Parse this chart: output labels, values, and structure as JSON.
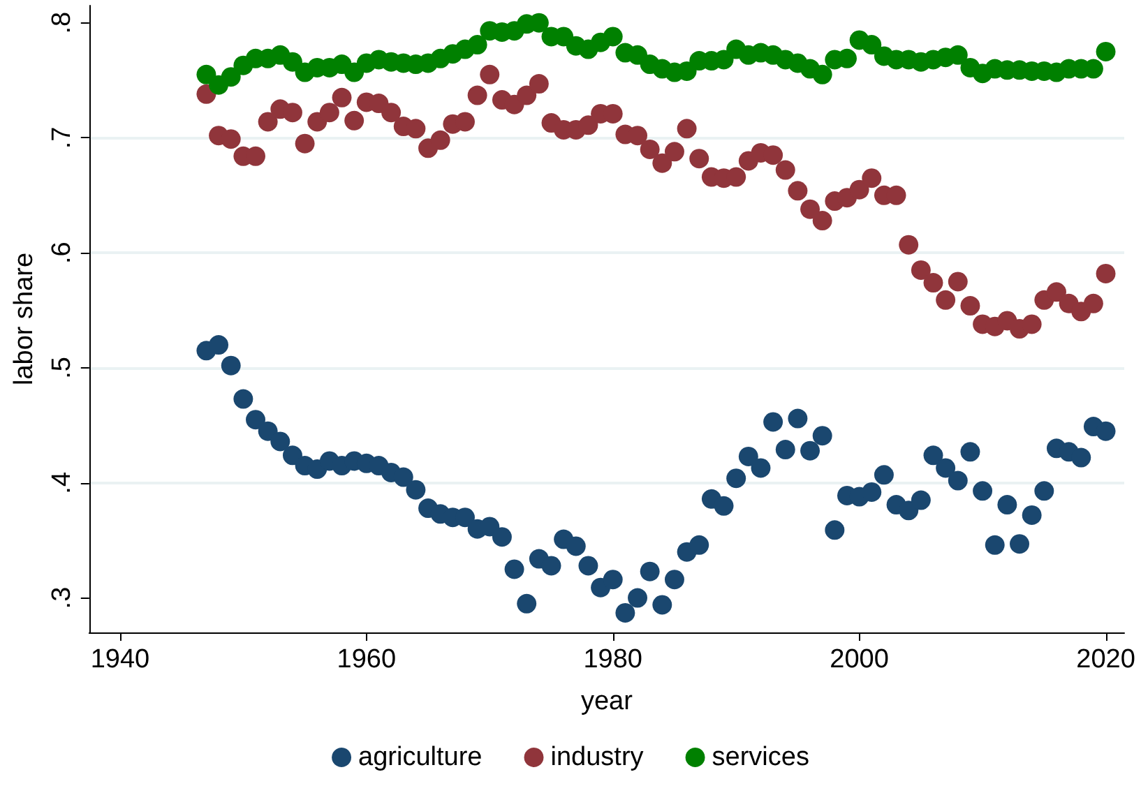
{
  "chart_data": {
    "type": "scatter",
    "xlabel": "year",
    "ylabel": "labor share",
    "x": [
      1947,
      1948,
      1949,
      1950,
      1951,
      1952,
      1953,
      1954,
      1955,
      1956,
      1957,
      1958,
      1959,
      1960,
      1961,
      1962,
      1963,
      1964,
      1965,
      1966,
      1967,
      1968,
      1969,
      1970,
      1971,
      1972,
      1973,
      1974,
      1975,
      1976,
      1977,
      1978,
      1979,
      1980,
      1981,
      1982,
      1983,
      1984,
      1985,
      1986,
      1987,
      1988,
      1989,
      1990,
      1991,
      1992,
      1993,
      1994,
      1995,
      1996,
      1997,
      1998,
      1999,
      2000,
      2001,
      2002,
      2003,
      2004,
      2005,
      2006,
      2007,
      2008,
      2009,
      2010,
      2011,
      2012,
      2013,
      2014,
      2015,
      2016,
      2017,
      2018,
      2019,
      2020
    ],
    "series": [
      {
        "name": "agriculture",
        "color": "#1a476f",
        "values": [
          0.515,
          0.52,
          0.502,
          0.473,
          0.455,
          0.445,
          0.436,
          0.424,
          0.415,
          0.412,
          0.419,
          0.415,
          0.419,
          0.417,
          0.415,
          0.409,
          0.405,
          0.394,
          0.378,
          0.373,
          0.37,
          0.37,
          0.36,
          0.362,
          0.353,
          0.325,
          0.295,
          0.334,
          0.328,
          0.351,
          0.345,
          0.328,
          0.309,
          0.316,
          0.287,
          0.3,
          0.323,
          0.294,
          0.316,
          0.34,
          0.346,
          0.386,
          0.38,
          0.404,
          0.423,
          0.413,
          0.453,
          0.429,
          0.456,
          0.428,
          0.441,
          0.359,
          0.389,
          0.388,
          0.392,
          0.407,
          0.381,
          0.376,
          0.385,
          0.424,
          0.413,
          0.402,
          0.427,
          0.393,
          0.346,
          0.381,
          0.347,
          0.372,
          0.393,
          0.43,
          0.427,
          0.422,
          0.449,
          0.445
        ]
      },
      {
        "name": "industry",
        "color": "#90353b",
        "values": [
          0.738,
          0.702,
          0.699,
          0.684,
          0.684,
          0.714,
          0.725,
          0.722,
          0.695,
          0.714,
          0.722,
          0.735,
          0.715,
          0.731,
          0.73,
          0.722,
          0.71,
          0.708,
          0.691,
          0.698,
          0.712,
          0.714,
          0.737,
          0.755,
          0.733,
          0.729,
          0.737,
          0.747,
          0.713,
          0.707,
          0.707,
          0.711,
          0.721,
          0.721,
          0.703,
          0.702,
          0.69,
          0.678,
          0.688,
          0.708,
          0.682,
          0.666,
          0.665,
          0.666,
          0.68,
          0.687,
          0.685,
          0.672,
          0.654,
          0.638,
          0.628,
          0.645,
          0.648,
          0.655,
          0.665,
          0.65,
          0.65,
          0.607,
          0.585,
          0.574,
          0.559,
          0.575,
          0.554,
          0.538,
          0.536,
          0.541,
          0.534,
          0.538,
          0.559,
          0.566,
          0.556,
          0.549,
          0.556,
          0.582
        ]
      },
      {
        "name": "services",
        "color": "#008000",
        "values": [
          0.755,
          0.746,
          0.753,
          0.763,
          0.769,
          0.769,
          0.772,
          0.766,
          0.757,
          0.761,
          0.761,
          0.764,
          0.757,
          0.765,
          0.768,
          0.766,
          0.765,
          0.764,
          0.765,
          0.769,
          0.773,
          0.777,
          0.781,
          0.793,
          0.792,
          0.793,
          0.799,
          0.8,
          0.788,
          0.788,
          0.78,
          0.777,
          0.783,
          0.788,
          0.774,
          0.772,
          0.764,
          0.76,
          0.757,
          0.758,
          0.767,
          0.767,
          0.768,
          0.777,
          0.772,
          0.774,
          0.772,
          0.768,
          0.765,
          0.76,
          0.755,
          0.768,
          0.769,
          0.785,
          0.781,
          0.771,
          0.768,
          0.768,
          0.766,
          0.768,
          0.77,
          0.772,
          0.761,
          0.756,
          0.76,
          0.759,
          0.759,
          0.758,
          0.758,
          0.757,
          0.76,
          0.76,
          0.76,
          0.775
        ]
      }
    ],
    "xlim": [
      1937.5,
      2021.5
    ],
    "xticks": [
      1940,
      1960,
      1980,
      2000,
      2020
    ],
    "ylim": [
      0.27,
      0.815
    ],
    "yticks": [
      {
        "value": 0.3,
        "label": ".3"
      },
      {
        "value": 0.4,
        "label": ".4"
      },
      {
        "value": 0.5,
        "label": ".5"
      },
      {
        "value": 0.6,
        "label": ".6"
      },
      {
        "value": 0.7,
        "label": ".7"
      },
      {
        "value": 0.8,
        "label": ".8"
      }
    ],
    "grid": "y",
    "legend": "bottom",
    "marker": "circle"
  }
}
